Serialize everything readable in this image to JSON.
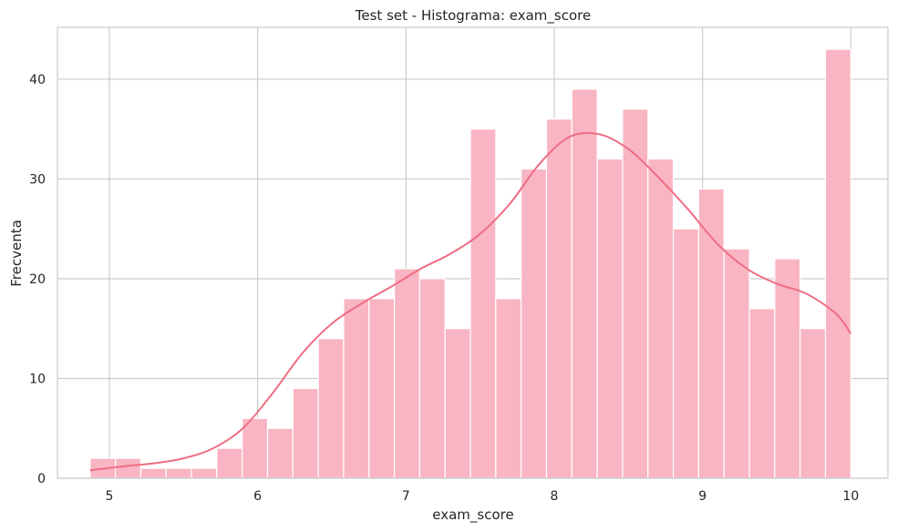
{
  "chart_data": {
    "type": "bar",
    "title": "Test set - Histograma: exam_score",
    "xlabel": "exam_score",
    "ylabel": "Frecventa",
    "xlim": [
      4.65,
      10.25
    ],
    "ylim": [
      0,
      45.2
    ],
    "xticks": [
      5,
      6,
      7,
      8,
      9,
      10
    ],
    "yticks": [
      0,
      10,
      20,
      30,
      40
    ],
    "grid": true,
    "bin_start": 4.87,
    "bin_width": 0.171,
    "values": [
      2,
      2,
      1,
      1,
      1,
      3,
      6,
      5,
      9,
      14,
      18,
      18,
      21,
      20,
      15,
      35,
      18,
      31,
      36,
      39,
      32,
      37,
      32,
      25,
      29,
      23,
      17,
      22,
      15,
      43
    ],
    "kde": {
      "x": [
        4.87,
        5.1,
        5.3,
        5.5,
        5.7,
        5.9,
        6.1,
        6.3,
        6.5,
        6.7,
        6.9,
        7.1,
        7.3,
        7.5,
        7.7,
        7.9,
        8.1,
        8.3,
        8.5,
        8.7,
        8.9,
        9.1,
        9.3,
        9.5,
        9.7,
        9.9,
        10.0
      ],
      "y": [
        0.8,
        1.2,
        1.5,
        2.0,
        3.0,
        5.0,
        8.5,
        12.5,
        15.5,
        17.5,
        19.2,
        21.0,
        22.5,
        24.5,
        27.5,
        31.5,
        34.2,
        34.5,
        33.0,
        30.2,
        27.0,
        23.5,
        21.0,
        19.5,
        18.5,
        16.5,
        14.5
      ]
    },
    "colors": {
      "bar": "#f9b5c3",
      "kde": "#ef6d83",
      "grid": "#cccccc",
      "frame": "#cccccc"
    }
  }
}
